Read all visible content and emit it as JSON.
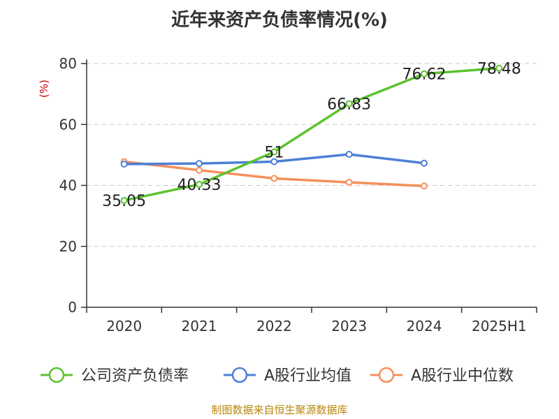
{
  "title": "近年来资产负债率情况(%)",
  "source": "制图数据来自恒生聚源数据库",
  "chart_data": {
    "type": "line",
    "title": "近年来资产负债率情况(%)",
    "ylabel": "(%)",
    "xlabel": "",
    "categories": [
      "2020",
      "2021",
      "2022",
      "2023",
      "2024",
      "2025H1"
    ],
    "ylim": [
      0,
      80
    ],
    "yticks": [
      0,
      20,
      40,
      60,
      80
    ],
    "grid": true,
    "legend_position": "bottom",
    "series": [
      {
        "name": "公司资产负债率",
        "color": "#5cc22e",
        "values": [
          35.05,
          40.33,
          51,
          66.83,
          76.62,
          78.48
        ],
        "labels": [
          "35.05",
          "40.33",
          "51",
          "66.83",
          "76.62",
          "78.48"
        ]
      },
      {
        "name": "A股行业均值",
        "color": "#4e7fd6",
        "values": [
          47.0,
          47.2,
          47.8,
          50.2,
          47.3,
          null
        ]
      },
      {
        "name": "A股行业中位数",
        "color": "#f5905a",
        "values": [
          47.8,
          45.0,
          42.3,
          41.0,
          39.8,
          null
        ]
      }
    ]
  }
}
